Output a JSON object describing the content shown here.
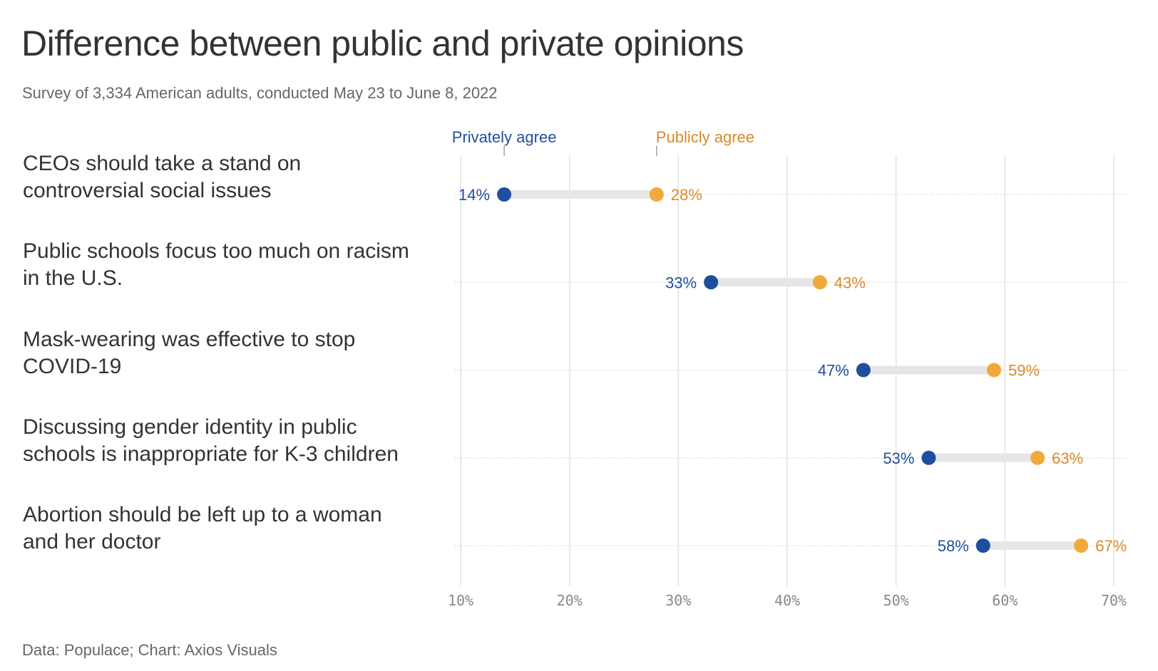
{
  "header": {
    "title": "Difference between public and private opinions",
    "subtitle": "Survey of 3,334 American adults, conducted May 23 to June 8, 2022"
  },
  "footer": {
    "source": "Data: Populace; Chart: Axios Visuals"
  },
  "colors": {
    "private_dot": "#1f4e9e",
    "private_text": "#1f4e9e",
    "public_dot": "#f2a93b",
    "public_text": "#d9892a",
    "connector": "#e6e6e6",
    "grid": "#e2e2e2",
    "dotted": "#cfcfcf"
  },
  "chart_data": {
    "type": "dumbbell",
    "title": "Difference between public and private opinions",
    "subtitle": "Survey of 3,334 American adults, conducted May 23 to June 8, 2022",
    "xlabel": "",
    "ylabel": "",
    "xlim": [
      10,
      70
    ],
    "x_ticks": [
      10,
      20,
      30,
      40,
      50,
      60,
      70
    ],
    "x_tick_labels": [
      "10%",
      "20%",
      "30%",
      "40%",
      "50%",
      "60%",
      "70%"
    ],
    "grid": "vertical",
    "legend": {
      "placement": "top",
      "entries": [
        "Privately agree",
        "Publicly agree"
      ],
      "anchored_to_row": 0
    },
    "categories": [
      "CEOs should take a stand on controversial social issues",
      "Public schools focus too much on racism in the U.S.",
      "Mask-wearing was effective to stop COVID-19",
      "Discussing gender identity in public schools is inappropriate for K-3 children",
      "Abortion should be left up to a woman and her doctor"
    ],
    "category_lines": [
      [
        "CEOs should take a stand on",
        "controversial social issues"
      ],
      [
        "Public schools focus too much on racism",
        "in the U.S."
      ],
      [
        "Mask-wearing was effective to stop",
        "COVID-19"
      ],
      [
        "Discussing gender identity in public",
        "schools is inappropriate for K-3 children"
      ],
      [
        "Abortion should be left up to a woman",
        "and her doctor"
      ]
    ],
    "series": [
      {
        "name": "Privately agree",
        "values": [
          14,
          33,
          47,
          53,
          58
        ],
        "labels": [
          "14%",
          "33%",
          "47%",
          "53%",
          "58%"
        ]
      },
      {
        "name": "Publicly agree",
        "values": [
          28,
          43,
          59,
          63,
          67
        ],
        "labels": [
          "28%",
          "43%",
          "59%",
          "63%",
          "67%"
        ]
      }
    ]
  }
}
